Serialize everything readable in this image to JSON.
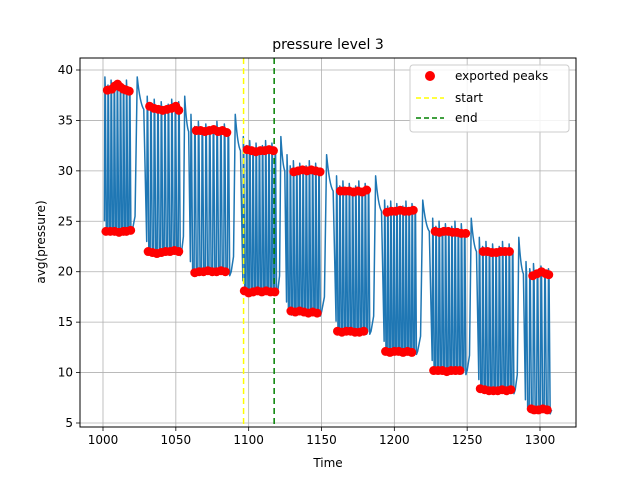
{
  "chart_data": {
    "type": "line",
    "title": "pressure level 3",
    "xlabel": "Time",
    "ylabel": "avg(pressure)",
    "xlim": [
      1000,
      1306
    ],
    "ylim": [
      5,
      40
    ],
    "x_ticks": [
      1000,
      1050,
      1100,
      1150,
      1200,
      1250,
      1300
    ],
    "y_ticks": [
      5,
      10,
      15,
      20,
      25,
      30,
      35,
      40
    ],
    "grid": true,
    "legend_position": "top-right",
    "signal_color": "#1f77b4",
    "peak_color": "#ff0000",
    "start_color": "#ffff00",
    "end_color": "#008000",
    "signal": {
      "name": "",
      "segments": [
        {
          "x": [
            1001,
            1020
          ],
          "high": 38.0,
          "low": 24.0,
          "peak_max": 39.3,
          "trough_min": 23.8,
          "cycles": 9
        },
        {
          "x": [
            1030,
            1054
          ],
          "high": 36.1,
          "low": 22.0,
          "peak_max": 37.4,
          "trough_min": 21.6,
          "cycles": 10
        },
        {
          "x": [
            1060,
            1088
          ],
          "high": 33.9,
          "low": 20.0,
          "peak_max": 35.6,
          "trough_min": 19.6,
          "cycles": 11
        },
        {
          "x": [
            1096,
            1120
          ],
          "high": 32.0,
          "low": 18.1,
          "peak_max": 33.4,
          "trough_min": 17.8,
          "cycles": 11
        },
        {
          "x": [
            1126,
            1150
          ],
          "high": 30.0,
          "low": 16.0,
          "peak_max": 31.6,
          "trough_min": 15.6,
          "cycles": 11
        },
        {
          "x": [
            1160,
            1184
          ],
          "high": 28.0,
          "low": 14.1,
          "peak_max": 29.5,
          "trough_min": 13.8,
          "cycles": 11
        },
        {
          "x": [
            1193,
            1216
          ],
          "high": 26.0,
          "low": 12.1,
          "peak_max": 27.1,
          "trough_min": 11.8,
          "cycles": 11
        },
        {
          "x": [
            1226,
            1250
          ],
          "high": 24.0,
          "low": 10.2,
          "peak_max": 25.3,
          "trough_min": 9.8,
          "cycles": 11
        },
        {
          "x": [
            1258,
            1283
          ],
          "high": 22.0,
          "low": 8.3,
          "peak_max": 23.4,
          "trough_min": 7.9,
          "cycles": 11
        },
        {
          "x": [
            1290,
            1308
          ],
          "high": 19.8,
          "low": 6.3,
          "peak_max": 21.0,
          "trough_min": 5.9,
          "cycles": 7
        }
      ]
    },
    "series": [
      {
        "name": "exported peaks",
        "type": "scatter",
        "points": [
          [
            1003,
            38.0
          ],
          [
            1006,
            38.1
          ],
          [
            1008,
            38.4
          ],
          [
            1010,
            38.6
          ],
          [
            1012,
            38.3
          ],
          [
            1014,
            38.1
          ],
          [
            1016,
            38.0
          ],
          [
            1018,
            37.9
          ],
          [
            1002,
            24.0
          ],
          [
            1005,
            24.0
          ],
          [
            1008,
            24.0
          ],
          [
            1011,
            23.9
          ],
          [
            1014,
            24.0
          ],
          [
            1016,
            24.0
          ],
          [
            1019,
            24.1
          ],
          [
            1032,
            36.4
          ],
          [
            1035,
            36.2
          ],
          [
            1038,
            36.1
          ],
          [
            1041,
            36.0
          ],
          [
            1044,
            36.1
          ],
          [
            1047,
            36.2
          ],
          [
            1050,
            36.4
          ],
          [
            1052,
            36.0
          ],
          [
            1031,
            22.0
          ],
          [
            1034,
            21.9
          ],
          [
            1037,
            21.8
          ],
          [
            1040,
            21.9
          ],
          [
            1043,
            22.0
          ],
          [
            1046,
            22.0
          ],
          [
            1049,
            22.1
          ],
          [
            1052,
            22.0
          ],
          [
            1064,
            34.0
          ],
          [
            1067,
            34.0
          ],
          [
            1070,
            33.9
          ],
          [
            1073,
            34.0
          ],
          [
            1076,
            34.1
          ],
          [
            1079,
            33.9
          ],
          [
            1082,
            34.0
          ],
          [
            1085,
            33.8
          ],
          [
            1063,
            19.9
          ],
          [
            1066,
            20.0
          ],
          [
            1069,
            20.0
          ],
          [
            1072,
            20.1
          ],
          [
            1075,
            20.0
          ],
          [
            1078,
            20.0
          ],
          [
            1081,
            20.1
          ],
          [
            1084,
            20.0
          ],
          [
            1099,
            32.1
          ],
          [
            1102,
            32.0
          ],
          [
            1105,
            31.9
          ],
          [
            1108,
            32.0
          ],
          [
            1111,
            32.0
          ],
          [
            1114,
            32.1
          ],
          [
            1117,
            32.0
          ],
          [
            1097,
            18.1
          ],
          [
            1100,
            17.9
          ],
          [
            1103,
            18.0
          ],
          [
            1106,
            18.1
          ],
          [
            1109,
            18.0
          ],
          [
            1112,
            18.1
          ],
          [
            1115,
            18.0
          ],
          [
            1118,
            18.0
          ],
          [
            1131,
            29.9
          ],
          [
            1134,
            30.0
          ],
          [
            1137,
            30.1
          ],
          [
            1140,
            30.0
          ],
          [
            1143,
            30.1
          ],
          [
            1146,
            30.0
          ],
          [
            1149,
            29.9
          ],
          [
            1129,
            16.1
          ],
          [
            1132,
            16.0
          ],
          [
            1135,
            16.1
          ],
          [
            1138,
            16.0
          ],
          [
            1141,
            15.9
          ],
          [
            1144,
            16.0
          ],
          [
            1147,
            15.9
          ],
          [
            1163,
            28.0
          ],
          [
            1166,
            28.0
          ],
          [
            1169,
            28.0
          ],
          [
            1172,
            27.9
          ],
          [
            1175,
            28.0
          ],
          [
            1178,
            27.9
          ],
          [
            1181,
            28.1
          ],
          [
            1161,
            14.1
          ],
          [
            1164,
            14.0
          ],
          [
            1167,
            14.1
          ],
          [
            1170,
            14.1
          ],
          [
            1173,
            14.0
          ],
          [
            1176,
            14.0
          ],
          [
            1179,
            14.1
          ],
          [
            1195,
            25.9
          ],
          [
            1198,
            26.0
          ],
          [
            1201,
            26.0
          ],
          [
            1204,
            26.1
          ],
          [
            1207,
            26.0
          ],
          [
            1210,
            26.0
          ],
          [
            1213,
            26.1
          ],
          [
            1194,
            12.1
          ],
          [
            1197,
            12.0
          ],
          [
            1200,
            12.1
          ],
          [
            1203,
            12.1
          ],
          [
            1206,
            12.0
          ],
          [
            1209,
            12.1
          ],
          [
            1212,
            12.0
          ],
          [
            1228,
            24.0
          ],
          [
            1231,
            23.9
          ],
          [
            1234,
            24.0
          ],
          [
            1237,
            24.0
          ],
          [
            1240,
            23.9
          ],
          [
            1243,
            23.9
          ],
          [
            1246,
            23.8
          ],
          [
            1249,
            23.8
          ],
          [
            1227,
            10.2
          ],
          [
            1230,
            10.2
          ],
          [
            1233,
            10.2
          ],
          [
            1236,
            10.1
          ],
          [
            1239,
            10.2
          ],
          [
            1242,
            10.2
          ],
          [
            1245,
            10.2
          ],
          [
            1261,
            22.0
          ],
          [
            1264,
            22.0
          ],
          [
            1267,
            21.9
          ],
          [
            1270,
            21.9
          ],
          [
            1273,
            22.0
          ],
          [
            1276,
            22.0
          ],
          [
            1279,
            22.0
          ],
          [
            1259,
            8.4
          ],
          [
            1262,
            8.3
          ],
          [
            1265,
            8.2
          ],
          [
            1268,
            8.2
          ],
          [
            1271,
            8.2
          ],
          [
            1274,
            8.3
          ],
          [
            1277,
            8.2
          ],
          [
            1280,
            8.3
          ],
          [
            1295,
            19.6
          ],
          [
            1298,
            19.8
          ],
          [
            1301,
            20.0
          ],
          [
            1304,
            19.8
          ],
          [
            1306,
            19.7
          ],
          [
            1294,
            6.4
          ],
          [
            1296,
            6.3
          ],
          [
            1299,
            6.3
          ],
          [
            1302,
            6.4
          ],
          [
            1305,
            6.3
          ]
        ]
      },
      {
        "name": "start",
        "type": "vline",
        "x": 1096.5,
        "style": "dashed"
      },
      {
        "name": "end",
        "type": "vline",
        "x": 1117.5,
        "style": "dashed"
      }
    ]
  }
}
